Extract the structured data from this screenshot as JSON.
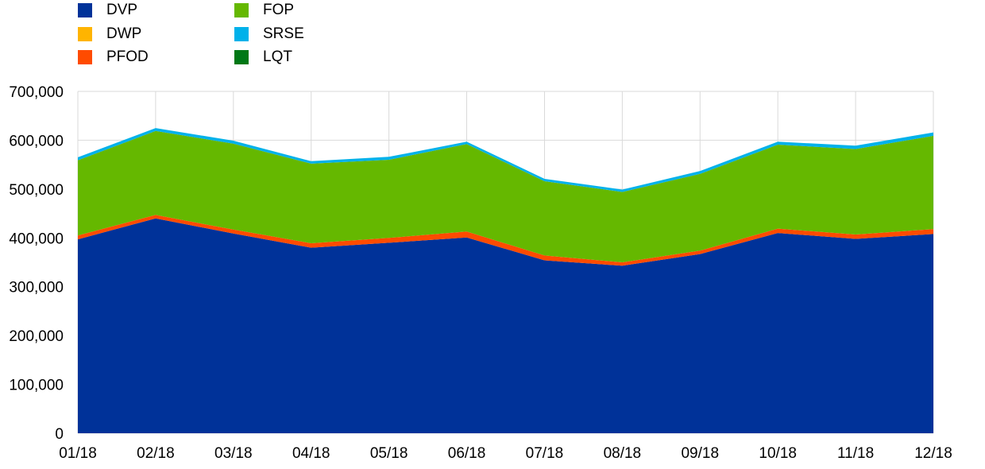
{
  "chart_data": {
    "type": "area",
    "stacked": true,
    "title": "",
    "xlabel": "",
    "ylabel": "",
    "categories": [
      "01/18",
      "02/18",
      "03/18",
      "04/18",
      "05/18",
      "06/18",
      "07/18",
      "08/18",
      "09/18",
      "10/18",
      "11/18",
      "12/18"
    ],
    "ylim": [
      0,
      700000
    ],
    "yticks": [
      "0",
      "100,000",
      "200,000",
      "300,000",
      "400,000",
      "500,000",
      "600,000",
      "700,000"
    ],
    "grid": true,
    "legend_position": "top-left",
    "series": [
      {
        "name": "DVP",
        "color": "#003299",
        "values": [
          397000,
          440000,
          409000,
          380000,
          390000,
          401000,
          354000,
          343000,
          367000,
          410000,
          398000,
          408000
        ]
      },
      {
        "name": "DWP",
        "color": "#FFB400",
        "values": [
          0,
          0,
          0,
          0,
          0,
          0,
          0,
          0,
          0,
          0,
          0,
          0
        ]
      },
      {
        "name": "PFOD",
        "color": "#FF4B00",
        "values": [
          8000,
          7000,
          8000,
          9000,
          10000,
          12000,
          10000,
          7000,
          7000,
          9000,
          9000,
          10000
        ]
      },
      {
        "name": "FOP",
        "color": "#65B800",
        "values": [
          154000,
          172000,
          176000,
          163000,
          160000,
          179000,
          152000,
          144000,
          157000,
          172000,
          175000,
          191000
        ]
      },
      {
        "name": "SRSE",
        "color": "#00B1EA",
        "values": [
          6000,
          6000,
          6000,
          5000,
          6000,
          5000,
          5000,
          5000,
          6000,
          6000,
          7000,
          7000
        ]
      },
      {
        "name": "LQT",
        "color": "#007816",
        "values": [
          0,
          0,
          0,
          0,
          0,
          0,
          0,
          0,
          0,
          0,
          0,
          0
        ]
      }
    ]
  }
}
